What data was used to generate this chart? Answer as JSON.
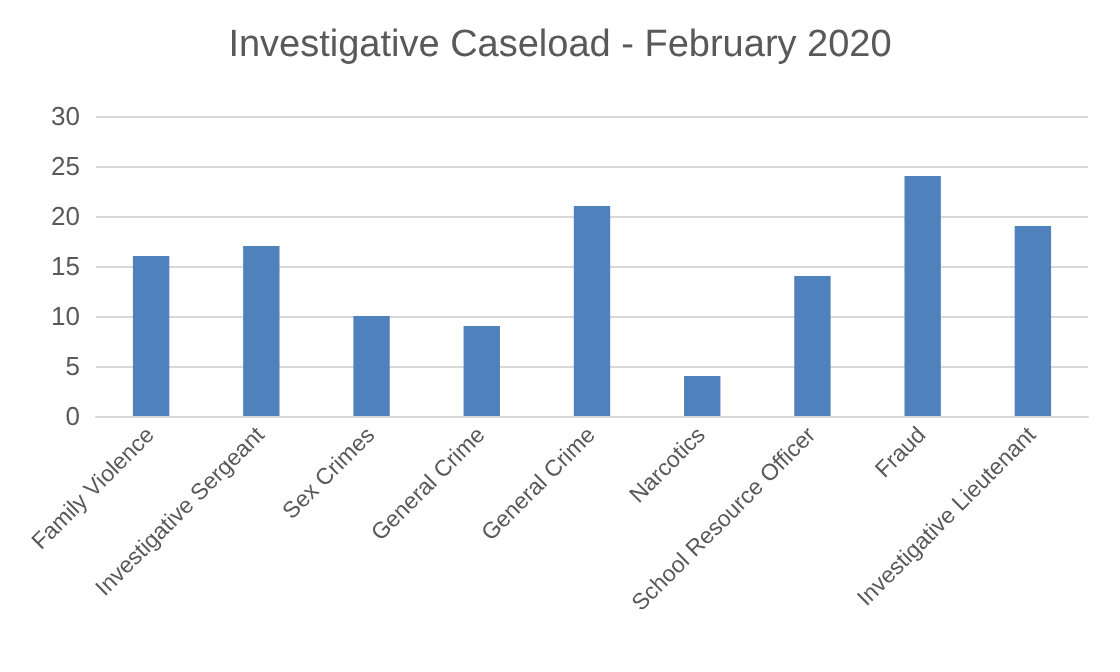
{
  "chart_data": {
    "type": "bar",
    "title": "Investigative Caseload - February 2020",
    "categories": [
      "Family Violence",
      "Investigative Sergeant",
      "Sex Crimes",
      "General Crime",
      "General Crime",
      "Narcotics",
      "School Resource Officer",
      "Fraud",
      "Investigative Lieutenant"
    ],
    "values": [
      16,
      17,
      10,
      9,
      21,
      4,
      14,
      24,
      19
    ],
    "color": "#4f81bd",
    "ylim": [
      0,
      30
    ],
    "yticks": [
      0,
      5,
      10,
      15,
      20,
      25,
      30
    ],
    "grid": "y"
  }
}
